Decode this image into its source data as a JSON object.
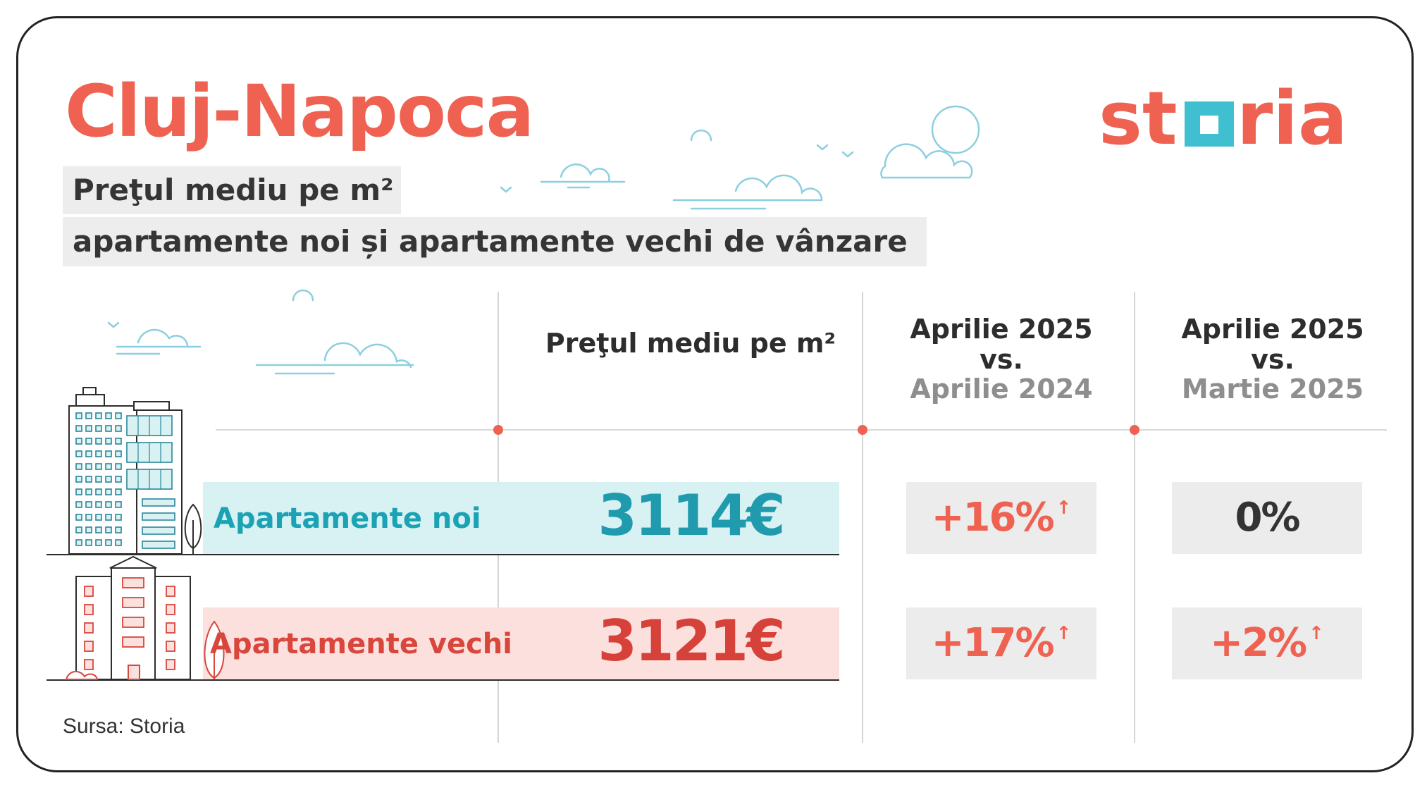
{
  "header": {
    "city": "Cluj-Napoca",
    "subtitle_line1": "Preţul mediu pe m²",
    "subtitle_line2": "apartamente noi și apartamente vechi de vânzare"
  },
  "logo": {
    "text": "storia",
    "icon": "storia-logo"
  },
  "columns": {
    "price": {
      "label": "Preţul mediu pe m²"
    },
    "yoy": {
      "current": "Aprilie 2025",
      "vs": "vs.",
      "previous": "Aprilie 2024"
    },
    "mom": {
      "current": "Aprilie 2025",
      "vs": "vs.",
      "previous": "Martie 2025"
    }
  },
  "rows": [
    {
      "label": "Apartamente noi",
      "price": "3114€",
      "yoy": "+16%",
      "yoy_direction": "up",
      "mom": "0%",
      "mom_direction": "flat"
    },
    {
      "label": "Apartamente vechi",
      "price": "3121€",
      "yoy": "+17%",
      "yoy_direction": "up",
      "mom": "+2%",
      "mom_direction": "up"
    }
  ],
  "source": "Sursa: Storia",
  "icons": {
    "up_arrow": "↑",
    "new_building": "modern-building-icon",
    "old_building": "old-building-icon",
    "clouds": "cloud-icon"
  },
  "colors": {
    "accent_coral": "#ef6251",
    "teal": "#1f9bad",
    "red": "#d6413a",
    "teal_band": "#d8f1f2",
    "pink_band": "#fbe0dd",
    "logo_square": "#3fbfd0"
  }
}
